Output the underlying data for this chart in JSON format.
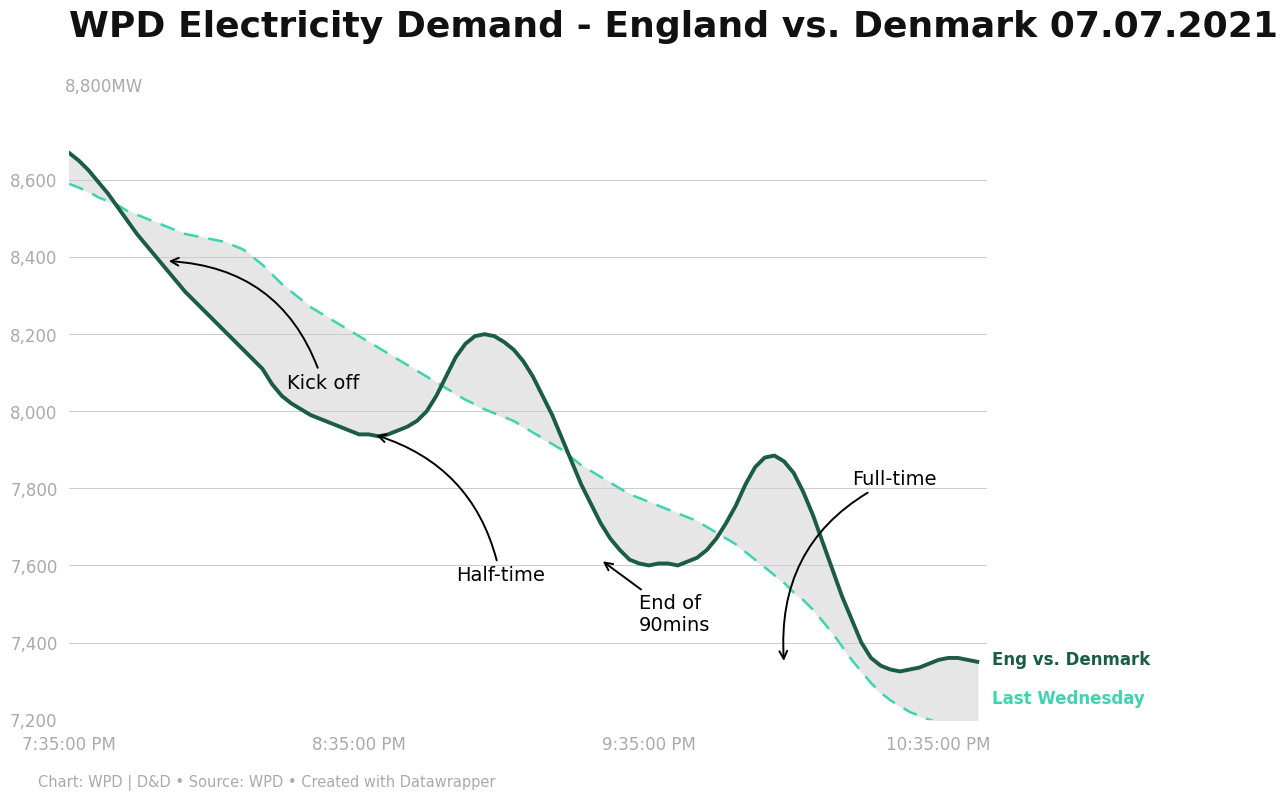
{
  "title": "WPD Electricity Demand - England vs. Denmark 07.07.2021",
  "title_fontsize": 26,
  "xlabel_ticks": [
    "7:35:00 PM",
    "8:35:00 PM",
    "9:35:00 PM",
    "10:35:00 PM"
  ],
  "yticks": [
    7200,
    7400,
    7600,
    7800,
    8000,
    8200,
    8400,
    8600
  ],
  "ylim": [
    7200,
    8900
  ],
  "xlim_min": 0,
  "xlim_max": 190,
  "background_color": "#ffffff",
  "fill_color": "#e6e6e6",
  "line1_color": "#1a5c45",
  "line2_color": "#3dd4b0",
  "footer_text": "Chart: WPD | D&D • Source: WPD • Created with Datawrapper",
  "legend_line1": "Eng vs. Denmark",
  "legend_line2": "Last Wednesday",
  "eng_x": [
    0,
    2,
    4,
    6,
    8,
    10,
    12,
    14,
    16,
    18,
    20,
    22,
    24,
    26,
    28,
    30,
    32,
    34,
    36,
    38,
    40,
    42,
    44,
    46,
    48,
    50,
    52,
    54,
    56,
    58,
    60,
    62,
    64,
    66,
    68,
    70,
    72,
    74,
    76,
    78,
    80,
    82,
    84,
    86,
    88,
    90,
    92,
    94,
    96,
    98,
    100,
    102,
    104,
    106,
    108,
    110,
    112,
    114,
    116,
    118,
    120,
    122,
    124,
    126,
    128,
    130,
    132,
    134,
    136,
    138,
    140,
    142,
    144,
    146,
    148,
    150,
    152,
    154,
    156,
    158,
    160,
    162,
    164,
    166,
    168,
    170,
    172,
    174,
    176,
    178,
    180,
    182,
    184,
    186,
    188
  ],
  "eng_y": [
    8670,
    8650,
    8625,
    8595,
    8565,
    8530,
    8495,
    8460,
    8430,
    8400,
    8370,
    8340,
    8310,
    8285,
    8260,
    8235,
    8210,
    8185,
    8160,
    8135,
    8110,
    8070,
    8040,
    8020,
    8005,
    7990,
    7980,
    7970,
    7960,
    7950,
    7940,
    7940,
    7935,
    7940,
    7950,
    7960,
    7975,
    8000,
    8040,
    8090,
    8140,
    8175,
    8195,
    8200,
    8195,
    8180,
    8160,
    8130,
    8090,
    8040,
    7990,
    7930,
    7870,
    7810,
    7760,
    7710,
    7670,
    7640,
    7615,
    7605,
    7600,
    7605,
    7605,
    7600,
    7610,
    7620,
    7640,
    7670,
    7710,
    7755,
    7810,
    7855,
    7880,
    7885,
    7870,
    7840,
    7790,
    7730,
    7660,
    7590,
    7520,
    7460,
    7400,
    7360,
    7340,
    7330,
    7325,
    7330,
    7335,
    7345,
    7355,
    7360,
    7360,
    7355,
    7350
  ],
  "wed_x": [
    0,
    2,
    4,
    6,
    8,
    10,
    12,
    14,
    16,
    18,
    20,
    22,
    24,
    26,
    28,
    30,
    32,
    34,
    36,
    38,
    40,
    42,
    44,
    46,
    48,
    50,
    52,
    54,
    56,
    58,
    60,
    62,
    64,
    66,
    68,
    70,
    72,
    74,
    76,
    78,
    80,
    82,
    84,
    86,
    88,
    90,
    92,
    94,
    96,
    98,
    100,
    102,
    104,
    106,
    108,
    110,
    112,
    114,
    116,
    118,
    120,
    122,
    124,
    126,
    128,
    130,
    132,
    134,
    136,
    138,
    140,
    142,
    144,
    146,
    148,
    150,
    152,
    154,
    156,
    158,
    160,
    162,
    164,
    166,
    168,
    170,
    172,
    174,
    176,
    178,
    180,
    182,
    184,
    186,
    188
  ],
  "wed_y": [
    8590,
    8580,
    8570,
    8555,
    8545,
    8535,
    8520,
    8510,
    8500,
    8490,
    8480,
    8470,
    8460,
    8455,
    8450,
    8445,
    8440,
    8430,
    8420,
    8400,
    8380,
    8355,
    8330,
    8310,
    8290,
    8270,
    8255,
    8240,
    8225,
    8210,
    8195,
    8180,
    8165,
    8150,
    8135,
    8120,
    8105,
    8090,
    8075,
    8060,
    8045,
    8030,
    8018,
    8005,
    7995,
    7985,
    7975,
    7960,
    7945,
    7930,
    7915,
    7900,
    7880,
    7860,
    7845,
    7830,
    7815,
    7800,
    7785,
    7775,
    7765,
    7755,
    7745,
    7735,
    7725,
    7715,
    7700,
    7685,
    7670,
    7655,
    7635,
    7615,
    7595,
    7575,
    7555,
    7530,
    7510,
    7485,
    7455,
    7425,
    7390,
    7355,
    7325,
    7295,
    7270,
    7250,
    7235,
    7220,
    7210,
    7200,
    7192,
    7185,
    7180,
    7175,
    7172
  ]
}
